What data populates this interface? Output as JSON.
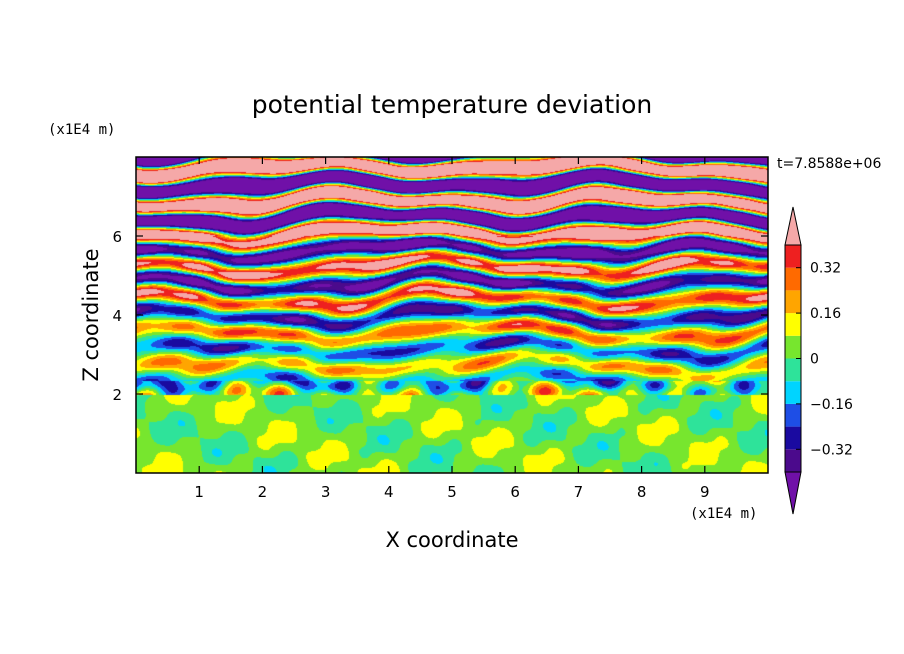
{
  "chart_data": {
    "type": "heatmap",
    "title": "potential temperature deviation",
    "xlabel": "X coordinate",
    "ylabel": "Z coordinate",
    "x_unit_label": "(x1E4 m)",
    "y_unit_label": "(x1E4 m)",
    "time_label": "t=7.8588e+06",
    "xlim": [
      0,
      10
    ],
    "ylim": [
      0,
      8
    ],
    "x_ticks": [
      1,
      2,
      3,
      4,
      5,
      6,
      7,
      8,
      9
    ],
    "x_tick_labels": [
      "1",
      "2",
      "3",
      "4",
      "5",
      "6",
      "7",
      "8",
      "9"
    ],
    "y_ticks": [
      2,
      4,
      6
    ],
    "y_tick_labels": [
      "2",
      "4",
      "6"
    ],
    "colorbar": {
      "levels": [
        -0.4,
        -0.32,
        -0.24,
        -0.16,
        -0.08,
        0,
        0.08,
        0.16,
        0.24,
        0.32,
        0.4
      ],
      "tick_values": [
        -0.32,
        -0.16,
        0,
        0.16,
        0.32
      ],
      "tick_labels": [
        "−0.32",
        "−0.16",
        "0",
        "0.16",
        "0.32"
      ],
      "colors": [
        "#4b0a8c",
        "#1a0aa0",
        "#1e4ee6",
        "#00d4ff",
        "#2ee39a",
        "#77e62e",
        "#ffff00",
        "#ffa500",
        "#ff6a00",
        "#ee2020"
      ],
      "under_color": "#7010a8",
      "over_color": "#f5a8a8"
    }
  }
}
